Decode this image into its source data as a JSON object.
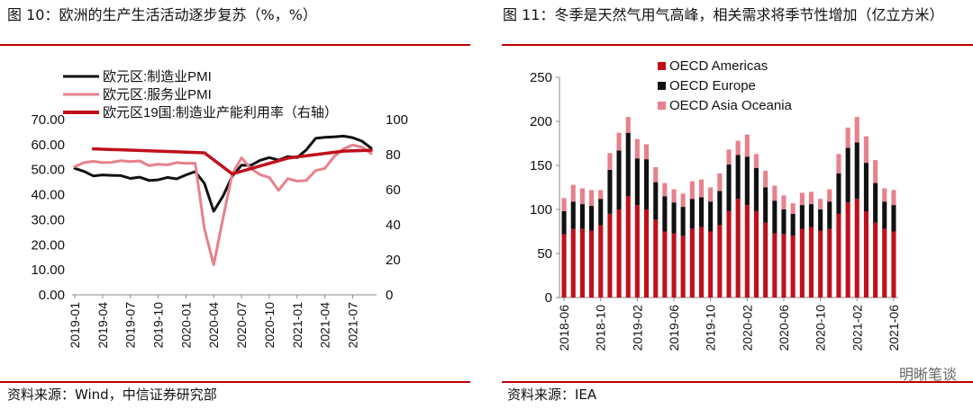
{
  "left": {
    "title": "图 10：欧洲的生产生活活动逐步复苏（%，%）",
    "source": "资料来源：Wind，中信证券研究部",
    "chart_data": {
      "type": "line",
      "y_left_ticks": [
        "0.00",
        "10.00",
        "20.00",
        "30.00",
        "40.00",
        "50.00",
        "60.00",
        "70.00"
      ],
      "y_left_range": [
        0,
        70
      ],
      "y_right_ticks": [
        "0",
        "20",
        "40",
        "60",
        "80",
        "100"
      ],
      "y_right_range": [
        0,
        100
      ],
      "x_ticks": [
        "2019-01",
        "2019-04",
        "2019-07",
        "2019-10",
        "2020-01",
        "2020-04",
        "2020-07",
        "2020-10",
        "2021-01",
        "2021-04",
        "2021-07"
      ],
      "x_months": [
        "2019-01",
        "2019-02",
        "2019-03",
        "2019-04",
        "2019-05",
        "2019-06",
        "2019-07",
        "2019-08",
        "2019-09",
        "2019-10",
        "2019-11",
        "2019-12",
        "2020-01",
        "2020-02",
        "2020-03",
        "2020-04",
        "2020-05",
        "2020-06",
        "2020-07",
        "2020-08",
        "2020-09",
        "2020-10",
        "2020-11",
        "2020-12",
        "2021-01",
        "2021-02",
        "2021-03",
        "2021-04",
        "2021-05",
        "2021-06",
        "2021-07",
        "2021-08",
        "2021-09"
      ],
      "series": [
        {
          "name": "欧元区:制造业PMI",
          "color": "#111111",
          "axis": "left",
          "values": [
            50.5,
            49.3,
            47.5,
            47.9,
            47.7,
            47.6,
            46.5,
            47.0,
            45.7,
            45.9,
            46.9,
            46.3,
            47.9,
            49.2,
            44.5,
            33.4,
            39.4,
            47.4,
            51.8,
            51.7,
            53.7,
            54.8,
            53.8,
            55.2,
            54.8,
            57.9,
            62.5,
            62.9,
            63.1,
            63.4,
            62.8,
            61.4,
            58.6
          ]
        },
        {
          "name": "欧元区:服务业PMI",
          "color": "#e8818c",
          "axis": "left",
          "values": [
            51.2,
            52.8,
            53.3,
            52.8,
            52.9,
            53.6,
            53.2,
            53.5,
            51.6,
            52.2,
            51.9,
            52.8,
            52.5,
            52.6,
            26.4,
            12.0,
            30.5,
            48.3,
            54.7,
            50.5,
            48.0,
            46.9,
            41.7,
            46.4,
            45.4,
            45.7,
            49.6,
            50.5,
            55.2,
            58.3,
            59.8,
            59.0,
            56.4
          ]
        },
        {
          "name": "欧元区19国:制造业产能利用率（右轴）",
          "color": "#c0101c",
          "axis": "right",
          "points": [
            [
              "2019-03",
              83.3
            ],
            [
              "2020-03",
              81.0
            ],
            [
              "2020-06",
              69.0
            ],
            [
              "2020-09",
              73.5
            ],
            [
              "2020-12",
              78.0
            ],
            [
              "2021-03",
              80.0
            ],
            [
              "2021-06",
              82.0
            ],
            [
              "2021-09",
              82.5
            ]
          ]
        }
      ]
    }
  },
  "right": {
    "title": "图 11：冬季是天然气用气高峰，相关需求将季节性增加（亿立方米）",
    "source": "资料来源：IEA",
    "watermark": "明晰笔谈",
    "chart_data": {
      "type": "bar",
      "stacked": true,
      "y_ticks": [
        "0",
        "50",
        "100",
        "150",
        "200",
        "250"
      ],
      "y_range": [
        0,
        250
      ],
      "x_ticks": [
        "2018-06",
        "2018-10",
        "2019-02",
        "2019-06",
        "2019-10",
        "2020-02",
        "2020-06",
        "2020-10",
        "2021-02",
        "2021-06"
      ],
      "categories": [
        "2018-06",
        "2018-07",
        "2018-08",
        "2018-09",
        "2018-10",
        "2018-11",
        "2018-12",
        "2019-01",
        "2019-02",
        "2019-03",
        "2019-04",
        "2019-05",
        "2019-06",
        "2019-07",
        "2019-08",
        "2019-09",
        "2019-10",
        "2019-11",
        "2019-12",
        "2020-01",
        "2020-02",
        "2020-03",
        "2020-04",
        "2020-05",
        "2020-06",
        "2020-07",
        "2020-08",
        "2020-09",
        "2020-10",
        "2020-11",
        "2020-12",
        "2021-01",
        "2021-02",
        "2021-03",
        "2021-04",
        "2021-05",
        "2021-06"
      ],
      "series": [
        {
          "name": "OECD Americas",
          "color": "#c0101c",
          "values": [
            72,
            78,
            78,
            76,
            82,
            95,
            100,
            115,
            105,
            100,
            88,
            75,
            73,
            70,
            78,
            80,
            75,
            82,
            98,
            112,
            105,
            98,
            85,
            73,
            72,
            70,
            78,
            80,
            76,
            78,
            95,
            108,
            112,
            98,
            85,
            78,
            75
          ]
        },
        {
          "name": "OECD Europe",
          "color": "#111111",
          "values": [
            26,
            31,
            28,
            28,
            30,
            50,
            67,
            72,
            53,
            57,
            43,
            40,
            35,
            33,
            34,
            34,
            34,
            39,
            53,
            50,
            55,
            49,
            40,
            37,
            28,
            25,
            27,
            26,
            24,
            31,
            46,
            62,
            64,
            55,
            45,
            31,
            30
          ]
        },
        {
          "name": "OECD Asia Oceania",
          "color": "#e8818c",
          "values": [
            15,
            19,
            18,
            18,
            10,
            19,
            20,
            18,
            22,
            17,
            17,
            15,
            15,
            15,
            20,
            20,
            16,
            20,
            17,
            16,
            25,
            16,
            19,
            17,
            16,
            12,
            14,
            14,
            12,
            14,
            22,
            23,
            29,
            30,
            26,
            15,
            17
          ]
        }
      ]
    }
  }
}
